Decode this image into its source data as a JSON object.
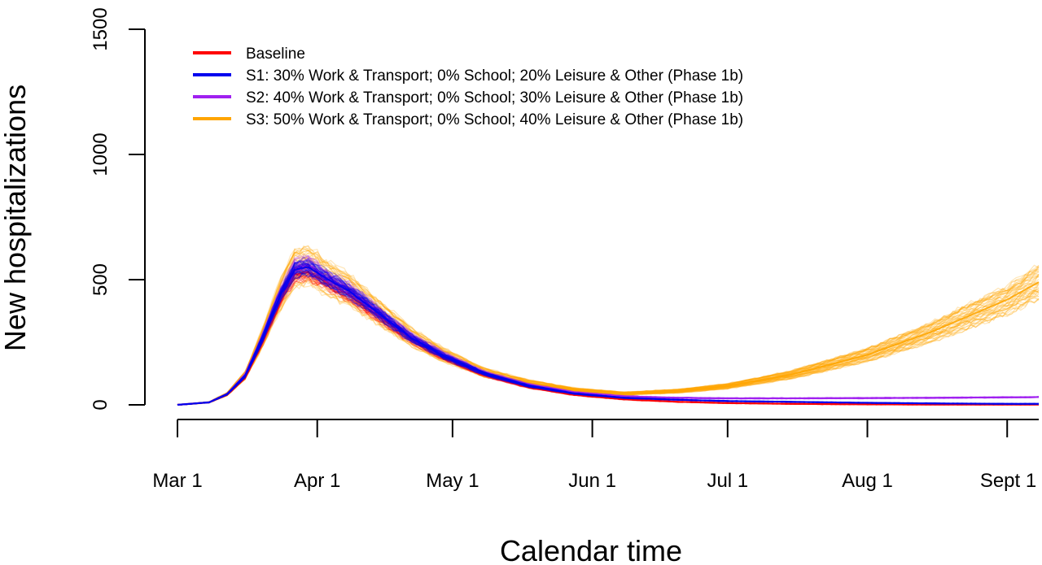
{
  "chart_data": {
    "type": "line",
    "xlabel": "Calendar time",
    "ylabel": "New hospitalizations",
    "ylim": [
      0,
      1500
    ],
    "yticks": [
      0,
      500,
      1000,
      1500
    ],
    "xlim": [
      "2020-03-01",
      "2020-09-08"
    ],
    "xticks": [
      {
        "date": "2020-03-01",
        "label": "Mar 1"
      },
      {
        "date": "2020-04-01",
        "label": "Apr 1"
      },
      {
        "date": "2020-05-01",
        "label": "May 1"
      },
      {
        "date": "2020-06-01",
        "label": "Jun 1"
      },
      {
        "date": "2020-07-01",
        "label": "Jul 1"
      },
      {
        "date": "2020-08-01",
        "label": "Aug 1"
      },
      {
        "date": "2020-09-01",
        "label": "Sept 1"
      }
    ],
    "legend_position": "top-left",
    "grid": false,
    "series": [
      {
        "name": "Baseline",
        "color": "#ff0000",
        "x": [
          "2020-03-01",
          "2020-03-08",
          "2020-03-12",
          "2020-03-16",
          "2020-03-20",
          "2020-03-24",
          "2020-03-27",
          "2020-03-30",
          "2020-04-03",
          "2020-04-08",
          "2020-04-15",
          "2020-04-22",
          "2020-04-29",
          "2020-05-08",
          "2020-05-18",
          "2020-05-28",
          "2020-06-08",
          "2020-06-20",
          "2020-07-01",
          "2020-07-15",
          "2020-08-01",
          "2020-08-15",
          "2020-09-01",
          "2020-09-08"
        ],
        "values": [
          0,
          10,
          40,
          110,
          260,
          430,
          520,
          530,
          490,
          440,
          350,
          260,
          190,
          120,
          70,
          40,
          22,
          12,
          7,
          4,
          2,
          1,
          1,
          1
        ]
      },
      {
        "name": "S1: 30% Work & Transport; 0% School; 20% Leisure & Other (Phase 1b)",
        "color": "#0000ee",
        "x": [
          "2020-03-01",
          "2020-03-08",
          "2020-03-12",
          "2020-03-16",
          "2020-03-20",
          "2020-03-24",
          "2020-03-27",
          "2020-03-30",
          "2020-04-03",
          "2020-04-08",
          "2020-04-15",
          "2020-04-22",
          "2020-04-29",
          "2020-05-08",
          "2020-05-18",
          "2020-05-28",
          "2020-06-08",
          "2020-06-20",
          "2020-07-01",
          "2020-07-15",
          "2020-08-01",
          "2020-08-15",
          "2020-09-01",
          "2020-09-08"
        ],
        "values": [
          0,
          10,
          42,
          115,
          270,
          445,
          540,
          550,
          505,
          455,
          360,
          265,
          195,
          125,
          75,
          45,
          28,
          20,
          15,
          12,
          8,
          6,
          4,
          4
        ]
      },
      {
        "name": "S2: 40% Work & Transport; 0% School; 30% Leisure & Other (Phase 1b)",
        "color": "#a020f0",
        "x": [
          "2020-03-01",
          "2020-03-08",
          "2020-03-12",
          "2020-03-16",
          "2020-03-20",
          "2020-03-24",
          "2020-03-27",
          "2020-03-30",
          "2020-04-03",
          "2020-04-08",
          "2020-04-15",
          "2020-04-22",
          "2020-04-29",
          "2020-05-08",
          "2020-05-18",
          "2020-05-28",
          "2020-06-08",
          "2020-06-20",
          "2020-07-01",
          "2020-07-15",
          "2020-08-01",
          "2020-08-15",
          "2020-09-01",
          "2020-09-08"
        ],
        "values": [
          0,
          10,
          43,
          118,
          275,
          450,
          548,
          560,
          510,
          460,
          365,
          270,
          200,
          128,
          80,
          50,
          34,
          28,
          26,
          26,
          27,
          28,
          30,
          31
        ]
      },
      {
        "name": "S3: 50% Work & Transport; 0% School; 40% Leisure & Other (Phase 1b)",
        "color": "#ffa500",
        "x": [
          "2020-03-01",
          "2020-03-08",
          "2020-03-12",
          "2020-03-16",
          "2020-03-20",
          "2020-03-24",
          "2020-03-27",
          "2020-03-30",
          "2020-04-03",
          "2020-04-08",
          "2020-04-15",
          "2020-04-22",
          "2020-04-29",
          "2020-05-08",
          "2020-05-18",
          "2020-05-28",
          "2020-06-08",
          "2020-06-20",
          "2020-07-01",
          "2020-07-15",
          "2020-08-01",
          "2020-08-15",
          "2020-09-01",
          "2020-09-08"
        ],
        "values": [
          0,
          10,
          43,
          118,
          275,
          450,
          548,
          560,
          510,
          460,
          365,
          270,
          200,
          130,
          88,
          60,
          45,
          55,
          75,
          120,
          200,
          290,
          420,
          490
        ]
      }
    ]
  }
}
